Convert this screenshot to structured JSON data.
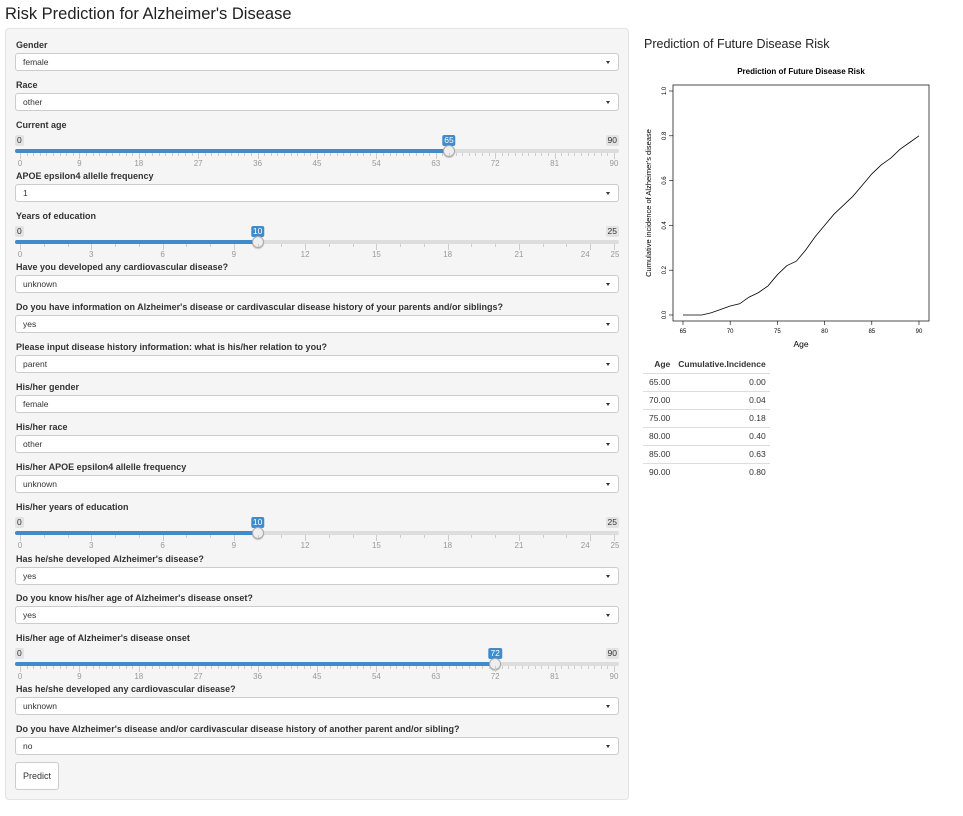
{
  "page_title": "Risk Prediction for Alzheimer's Disease",
  "form": {
    "fields": [
      {
        "type": "select",
        "label": "Gender",
        "value": "female"
      },
      {
        "type": "select",
        "label": "Race",
        "value": "other"
      },
      {
        "type": "slider",
        "label": "Current age",
        "min": "0",
        "max": "90",
        "value": 65,
        "value_text": "65",
        "ticks": [
          "0",
          "9",
          "18",
          "27",
          "36",
          "45",
          "54",
          "63",
          "72",
          "81",
          "90"
        ]
      },
      {
        "type": "select",
        "label": "APOE epsilon4 allelle frequency",
        "value": "1"
      },
      {
        "type": "slider",
        "label": "Years of education",
        "min": "0",
        "max": "25",
        "value": 10,
        "value_text": "10",
        "ticks": [
          "0",
          "3",
          "6",
          "9",
          "12",
          "15",
          "18",
          "21",
          "24",
          "25"
        ]
      },
      {
        "type": "select",
        "label": "Have you developed any cardiovascular disease?",
        "value": "unknown"
      },
      {
        "type": "select",
        "label": "Do you have information on Alzheimer's disease or cardivascular disease history of your parents and/or siblings?",
        "value": "yes"
      },
      {
        "type": "select",
        "label": "Please input disease history information: what is his/her relation to you?",
        "value": "parent"
      },
      {
        "type": "select",
        "label": "His/her gender",
        "value": "female"
      },
      {
        "type": "select",
        "label": "His/her race",
        "value": "other"
      },
      {
        "type": "select",
        "label": "His/her APOE epsilon4 allelle frequency",
        "value": "unknown"
      },
      {
        "type": "slider",
        "label": "His/her years of education",
        "min": "0",
        "max": "25",
        "value": 10,
        "value_text": "10",
        "ticks": [
          "0",
          "3",
          "6",
          "9",
          "12",
          "15",
          "18",
          "21",
          "24",
          "25"
        ]
      },
      {
        "type": "select",
        "label": "Has he/she developed Alzheimer's disease?",
        "value": "yes"
      },
      {
        "type": "select",
        "label": "Do you know his/her age of Alzheimer's disease onset?",
        "value": "yes"
      },
      {
        "type": "slider",
        "label": "His/her age of Alzheimer's disease onset",
        "min": "0",
        "max": "90",
        "value": 72,
        "value_text": "72",
        "ticks": [
          "0",
          "9",
          "18",
          "27",
          "36",
          "45",
          "54",
          "63",
          "72",
          "81",
          "90"
        ]
      },
      {
        "type": "select",
        "label": "Has he/she developed any cardiovascular disease?",
        "value": "unknown"
      },
      {
        "type": "select",
        "label": "Do you have Alzheimer's disease and/or cardivascular disease history of another parent and/or sibling?",
        "value": "no"
      }
    ],
    "predict_label": "Predict"
  },
  "main": {
    "title": "Prediction of Future Disease Risk"
  },
  "chart_data": {
    "type": "line",
    "title": "Prediction of Future Disease Risk",
    "xlabel": "Age",
    "ylabel": "Cumulative incidence of Alzheimer's disease",
    "xlim": [
      64,
      90.5
    ],
    "ylim": [
      0,
      1.0
    ],
    "xticks": [
      "65",
      "70",
      "75",
      "80",
      "85",
      "90"
    ],
    "yticks": [
      "0.0",
      "0.2",
      "0.4",
      "0.6",
      "0.8",
      "1.0"
    ],
    "series": [
      {
        "x": [
          65,
          66,
          67,
          68,
          69,
          70,
          71,
          72,
          73,
          74,
          75,
          76,
          77,
          78,
          79,
          80,
          81,
          82,
          83,
          84,
          85,
          86,
          87,
          88,
          89,
          90
        ],
        "y": [
          0.0,
          0.0,
          0.0,
          0.01,
          0.025,
          0.04,
          0.05,
          0.08,
          0.1,
          0.13,
          0.18,
          0.22,
          0.24,
          0.29,
          0.35,
          0.4,
          0.45,
          0.49,
          0.53,
          0.58,
          0.63,
          0.67,
          0.7,
          0.74,
          0.77,
          0.8
        ]
      }
    ]
  },
  "table": {
    "headers": [
      "Age",
      "Cumulative.Incidence"
    ],
    "rows": [
      [
        "65.00",
        "0.00"
      ],
      [
        "70.00",
        "0.04"
      ],
      [
        "75.00",
        "0.18"
      ],
      [
        "80.00",
        "0.40"
      ],
      [
        "85.00",
        "0.63"
      ],
      [
        "90.00",
        "0.80"
      ]
    ]
  },
  "colors": {
    "slider_accent": "#428bca",
    "well_background": "#f5f5f5"
  }
}
